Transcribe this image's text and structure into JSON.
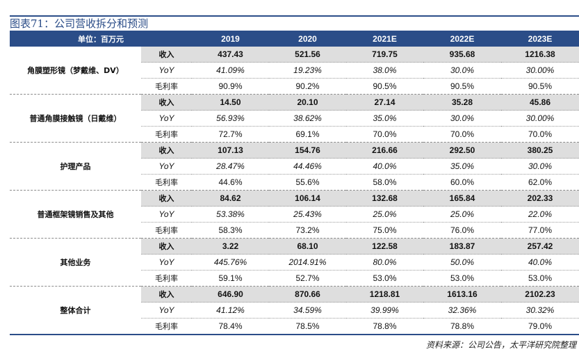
{
  "title": "图表71：公司营收拆分和预测",
  "header": {
    "unit": "单位：百万元",
    "years": [
      "2019",
      "2020",
      "2021E",
      "2022E",
      "2023E"
    ]
  },
  "segments": [
    {
      "name": "角膜塑形镜（梦戴维、DV）",
      "rows": [
        {
          "label": "收入",
          "values": [
            "437.43",
            "521.56",
            "719.75",
            "935.68",
            "1216.38"
          ]
        },
        {
          "label": "YoY",
          "values": [
            "41.09%",
            "19.23%",
            "38.0%",
            "30.0%",
            "30.00%"
          ]
        },
        {
          "label": "毛利率",
          "values": [
            "90.9%",
            "90.2%",
            "90.5%",
            "90.5%",
            "90.5%"
          ]
        }
      ]
    },
    {
      "name": "普通角膜接触镜（日戴维）",
      "rows": [
        {
          "label": "收入",
          "values": [
            "14.50",
            "20.10",
            "27.14",
            "35.28",
            "45.86"
          ]
        },
        {
          "label": "YoY",
          "values": [
            "56.93%",
            "38.62%",
            "35.0%",
            "30.0%",
            "30.00%"
          ]
        },
        {
          "label": "毛利率",
          "values": [
            "72.7%",
            "69.1%",
            "70.0%",
            "70.0%",
            "70.0%"
          ]
        }
      ]
    },
    {
      "name": "护理产品",
      "rows": [
        {
          "label": "收入",
          "values": [
            "107.13",
            "154.76",
            "216.66",
            "292.50",
            "380.25"
          ]
        },
        {
          "label": "YoY",
          "values": [
            "28.47%",
            "44.46%",
            "40.0%",
            "35.0%",
            "30.0%"
          ]
        },
        {
          "label": "毛利率",
          "values": [
            "44.6%",
            "55.6%",
            "58.0%",
            "60.0%",
            "62.0%"
          ]
        }
      ]
    },
    {
      "name": "普通框架镜销售及其他",
      "rows": [
        {
          "label": "收入",
          "values": [
            "84.62",
            "106.14",
            "132.68",
            "165.84",
            "202.33"
          ]
        },
        {
          "label": "YoY",
          "values": [
            "53.38%",
            "25.43%",
            "25.0%",
            "25.0%",
            "22.0%"
          ]
        },
        {
          "label": "毛利率",
          "values": [
            "58.3%",
            "73.2%",
            "75.0%",
            "76.0%",
            "77.0%"
          ]
        }
      ]
    },
    {
      "name": "其他业务",
      "rows": [
        {
          "label": "收入",
          "values": [
            "3.22",
            "68.10",
            "122.58",
            "183.87",
            "257.42"
          ]
        },
        {
          "label": "YoY",
          "values": [
            "445.76%",
            "2014.91%",
            "80.0%",
            "50.0%",
            "40.0%"
          ]
        },
        {
          "label": "毛利率",
          "values": [
            "59.1%",
            "52.7%",
            "53.0%",
            "53.0%",
            "53.0%"
          ]
        }
      ]
    },
    {
      "name": "整体合计",
      "rows": [
        {
          "label": "收入",
          "values": [
            "646.90",
            "870.66",
            "1218.81",
            "1613.16",
            "2102.23"
          ]
        },
        {
          "label": "YoY",
          "values": [
            "41.12%",
            "34.59%",
            "39.99%",
            "32.36%",
            "30.32%"
          ]
        },
        {
          "label": "毛利率",
          "values": [
            "78.4%",
            "78.5%",
            "78.8%",
            "78.8%",
            "79.0%"
          ]
        }
      ]
    }
  ],
  "source": "资料来源：公司公告，太平洋研究院整理",
  "colors": {
    "header_bg": "#2b4d88",
    "revenue_row_bg": "#dedede"
  }
}
